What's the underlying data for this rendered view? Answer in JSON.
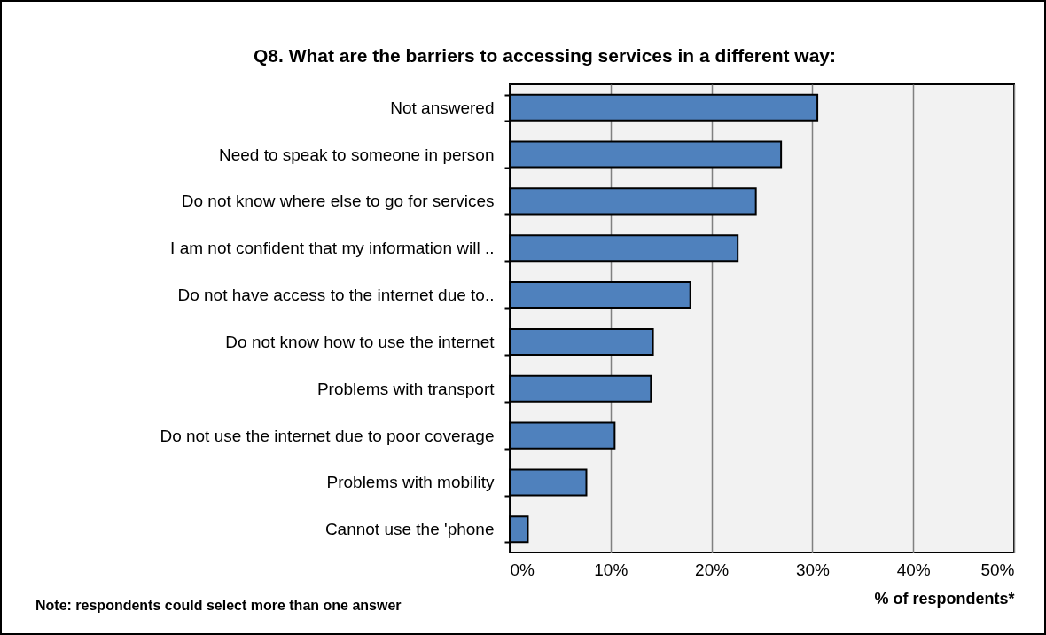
{
  "chart_data": {
    "type": "bar",
    "orientation": "horizontal",
    "title": "Q8. What are the barriers to accessing services in a different way:",
    "xlabel": "% of respondents*",
    "annotations": [
      "Note: respondents could select more than one answer"
    ],
    "categories": [
      "Not answered",
      "Need to speak to someone in person",
      "Do not know where else to go for services",
      "I am not confident that my information will ..",
      "Do not have access to the internet due to..",
      "Do not know how to use the internet",
      "Problems with transport",
      "Do not use the internet due to poor coverage",
      "Problems with mobility",
      "Cannot use the 'phone"
    ],
    "values": [
      30.5,
      26.9,
      24.4,
      22.6,
      17.9,
      14.2,
      14.0,
      10.4,
      7.6,
      1.8
    ],
    "color": "#4f81bd",
    "xlim": [
      0,
      50
    ],
    "xticks": [
      {
        "value": 0,
        "label": "0%"
      },
      {
        "value": 10,
        "label": "10%"
      },
      {
        "value": 20,
        "label": "20%"
      },
      {
        "value": 30,
        "label": "30%"
      },
      {
        "value": 40,
        "label": "40%"
      },
      {
        "value": 50,
        "label": "50%"
      }
    ],
    "grid": "x"
  }
}
